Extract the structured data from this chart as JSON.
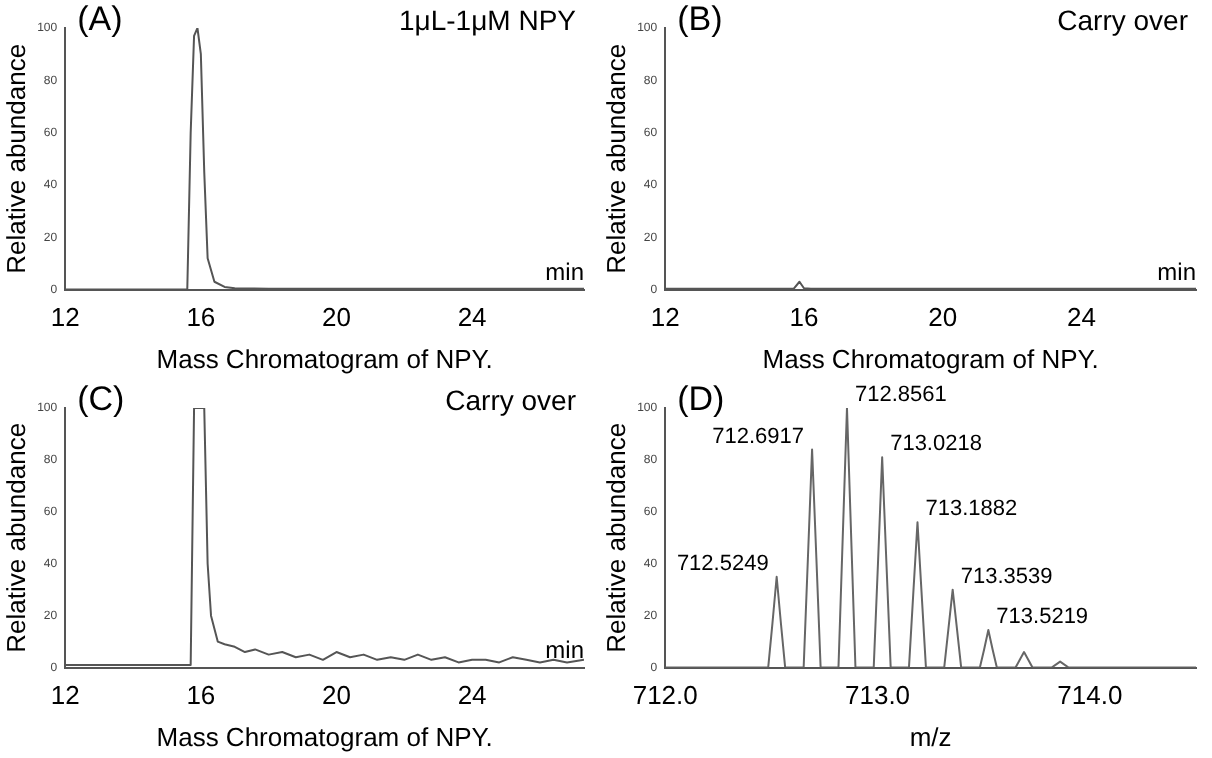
{
  "chart_data": [
    {
      "type": "line",
      "title": "(A)",
      "subtitle": "1μL-1μM NPY",
      "xlabel": "Mass Chromatogram of NPY.",
      "ylabel": "Relative abundance",
      "annotations": [
        "min"
      ],
      "marker": "none",
      "line_style": "solid",
      "xlim": [
        12,
        27.3
      ],
      "xticks": [
        12,
        16,
        20,
        24
      ],
      "ylim": [
        0,
        100
      ],
      "yticks": [
        0,
        20,
        40,
        60,
        80,
        100
      ],
      "series": [
        {
          "color": "#555555",
          "x": [
            12,
            13,
            14,
            15,
            15.6,
            15.7,
            15.8,
            15.9,
            16.0,
            16.1,
            16.2,
            16.4,
            16.7,
            17,
            18,
            19,
            20,
            21,
            22,
            23,
            24,
            25,
            26,
            27.3
          ],
          "values": [
            0,
            0,
            0,
            0,
            0,
            60,
            97,
            100,
            90,
            45,
            12,
            3,
            1,
            0.5,
            0.3,
            0.3,
            0.3,
            0.3,
            0.3,
            0.3,
            0.3,
            0.3,
            0.3,
            0.3
          ]
        }
      ]
    },
    {
      "type": "line",
      "title": "(B)",
      "subtitle": "Carry over",
      "xlabel": "Mass Chromatogram of NPY.",
      "ylabel": "Relative abundance",
      "annotations": [
        "min"
      ],
      "marker": "none",
      "line_style": "solid",
      "xlim": [
        12,
        27.3
      ],
      "xticks": [
        12,
        16,
        20,
        24
      ],
      "ylim": [
        0,
        100
      ],
      "yticks": [
        0,
        20,
        40,
        60,
        80,
        100
      ],
      "series": [
        {
          "color": "#555555",
          "x": [
            12,
            13,
            14,
            15,
            15.7,
            15.87,
            16.0,
            16.2,
            17,
            18,
            19,
            20,
            21,
            22,
            23,
            24,
            25,
            26,
            27.3
          ],
          "values": [
            0.3,
            0.3,
            0.3,
            0.3,
            0.3,
            3,
            0.5,
            0.3,
            0.3,
            0.3,
            0.3,
            0.3,
            0.3,
            0.3,
            0.3,
            0.3,
            0.3,
            0.3,
            0.3
          ]
        }
      ]
    },
    {
      "type": "line",
      "title": "(C)",
      "subtitle": "Carry over",
      "xlabel": "Mass Chromatogram of NPY.",
      "ylabel": "Relative abundance",
      "annotations": [
        "min"
      ],
      "marker": "none",
      "line_style": "solid",
      "xlim": [
        12,
        27.3
      ],
      "xticks": [
        12,
        16,
        20,
        24
      ],
      "ylim": [
        0,
        100
      ],
      "yticks": [
        0,
        20,
        40,
        60,
        80,
        100
      ],
      "series": [
        {
          "color": "#555555",
          "x": [
            12,
            13,
            14,
            15,
            15.7,
            15.8,
            16.1,
            16.2,
            16.3,
            16.5,
            16.7,
            17,
            17.3,
            17.6,
            18,
            18.4,
            18.8,
            19.2,
            19.6,
            20,
            20.4,
            20.8,
            21.2,
            21.6,
            22,
            22.4,
            22.8,
            23.2,
            23.6,
            24,
            24.4,
            24.8,
            25.2,
            25.6,
            26,
            26.4,
            26.8,
            27.3
          ],
          "values": [
            1,
            1,
            1,
            1,
            1,
            100,
            100,
            40,
            20,
            10,
            9,
            8,
            6,
            7,
            5,
            6,
            4,
            5,
            3,
            6,
            4,
            5,
            3,
            4,
            3,
            5,
            3,
            4,
            2,
            3,
            3,
            2,
            4,
            3,
            2,
            3,
            2,
            3
          ]
        }
      ]
    },
    {
      "type": "line",
      "title": "(D)",
      "xlabel": "m/z",
      "ylabel": "Relative abundance",
      "marker": "none",
      "line_style": "solid",
      "xlim": [
        712.0,
        714.5
      ],
      "xticks": [
        {
          "value": 712,
          "label": "712.0"
        },
        {
          "value": 713,
          "label": "713.0"
        },
        {
          "value": 714,
          "label": "714.0"
        }
      ],
      "ylim": [
        0,
        100
      ],
      "yticks": [
        0,
        20,
        40,
        60,
        80,
        100
      ],
      "annotations": [
        {
          "text": "712.5249",
          "x": 712.5249,
          "y": 35
        },
        {
          "text": "712.6917",
          "x": 712.6917,
          "y": 84
        },
        {
          "text": "712.8561",
          "x": 712.8561,
          "y": 100
        },
        {
          "text": "713.0218",
          "x": 713.0218,
          "y": 81
        },
        {
          "text": "713.1882",
          "x": 713.1882,
          "y": 56
        },
        {
          "text": "713.3539",
          "x": 713.3539,
          "y": 30
        },
        {
          "text": "713.5219",
          "x": 713.5219,
          "y": 14.5
        }
      ],
      "series": [
        {
          "color": "#666666",
          "x": [
            712.0,
            712.485,
            712.505,
            712.5249,
            712.545,
            712.565,
            712.652,
            712.672,
            712.6917,
            712.712,
            712.732,
            712.816,
            712.836,
            712.8561,
            712.876,
            712.896,
            712.982,
            713.002,
            713.0218,
            713.042,
            713.062,
            713.148,
            713.168,
            713.1882,
            713.208,
            713.228,
            713.314,
            713.334,
            713.3539,
            713.374,
            713.394,
            713.482,
            713.502,
            713.5219,
            713.542,
            713.562,
            713.65,
            713.67,
            713.69,
            713.71,
            713.73,
            713.82,
            713.86,
            713.9,
            714.5
          ],
          "values": [
            0,
            0,
            17,
            35,
            17,
            0,
            0,
            42,
            84,
            42,
            0,
            0,
            50,
            100,
            50,
            0,
            0,
            40,
            81,
            40,
            0,
            0,
            28,
            56,
            28,
            0,
            0,
            15,
            30,
            15,
            0,
            0,
            7,
            14.5,
            7,
            0,
            0,
            3,
            6,
            3,
            0,
            0,
            2.3,
            0,
            0
          ]
        }
      ]
    }
  ]
}
